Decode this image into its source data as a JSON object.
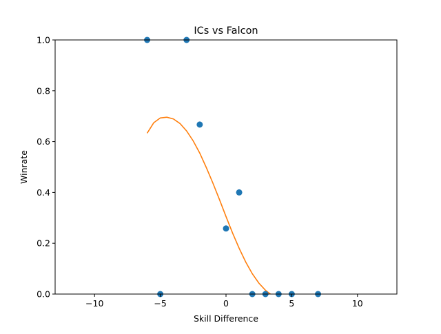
{
  "chart_data": {
    "type": "scatter",
    "title": "ICs vs Falcon",
    "xlabel": "Skill Difference",
    "ylabel": "Winrate",
    "xlim": [
      -13,
      13
    ],
    "ylim": [
      0,
      1
    ],
    "x_ticks": [
      {
        "value": -10,
        "label": "−10"
      },
      {
        "value": -5,
        "label": "−5"
      },
      {
        "value": 0,
        "label": "0"
      },
      {
        "value": 5,
        "label": "5"
      },
      {
        "value": 10,
        "label": "10"
      }
    ],
    "y_ticks": [
      {
        "value": 0.0,
        "label": "0.0"
      },
      {
        "value": 0.2,
        "label": "0.2"
      },
      {
        "value": 0.4,
        "label": "0.4"
      },
      {
        "value": 0.6,
        "label": "0.6"
      },
      {
        "value": 0.8,
        "label": "0.8"
      },
      {
        "value": 1.0,
        "label": "1.0"
      }
    ],
    "grid": false,
    "series": [
      {
        "kind": "scatter",
        "color": "#1f77b4",
        "points": [
          {
            "x": -6,
            "y": 1.0
          },
          {
            "x": -5,
            "y": 0.0
          },
          {
            "x": -3,
            "y": 1.0
          },
          {
            "x": -2,
            "y": 0.667
          },
          {
            "x": 0,
            "y": 0.258
          },
          {
            "x": 1,
            "y": 0.4
          },
          {
            "x": 2,
            "y": 0.0
          },
          {
            "x": 3,
            "y": 0.0
          },
          {
            "x": 4,
            "y": 0.0
          },
          {
            "x": 5,
            "y": 0.0
          },
          {
            "x": 7,
            "y": 0.0
          }
        ]
      },
      {
        "kind": "line",
        "color": "#ff7f0e",
        "points": [
          {
            "x": -6.0,
            "y": 0.633
          },
          {
            "x": -5.5,
            "y": 0.674
          },
          {
            "x": -5.0,
            "y": 0.693
          },
          {
            "x": -4.5,
            "y": 0.696
          },
          {
            "x": -4.0,
            "y": 0.689
          },
          {
            "x": -3.5,
            "y": 0.671
          },
          {
            "x": -3.0,
            "y": 0.642
          },
          {
            "x": -2.5,
            "y": 0.603
          },
          {
            "x": -2.0,
            "y": 0.555
          },
          {
            "x": -1.5,
            "y": 0.498
          },
          {
            "x": -1.0,
            "y": 0.437
          },
          {
            "x": -0.5,
            "y": 0.372
          },
          {
            "x": 0.0,
            "y": 0.305
          },
          {
            "x": 0.5,
            "y": 0.24
          },
          {
            "x": 1.0,
            "y": 0.18
          },
          {
            "x": 1.5,
            "y": 0.126
          },
          {
            "x": 2.0,
            "y": 0.08
          },
          {
            "x": 2.5,
            "y": 0.043
          },
          {
            "x": 3.0,
            "y": 0.015
          },
          {
            "x": 3.5,
            "y": -0.005
          }
        ]
      }
    ]
  }
}
